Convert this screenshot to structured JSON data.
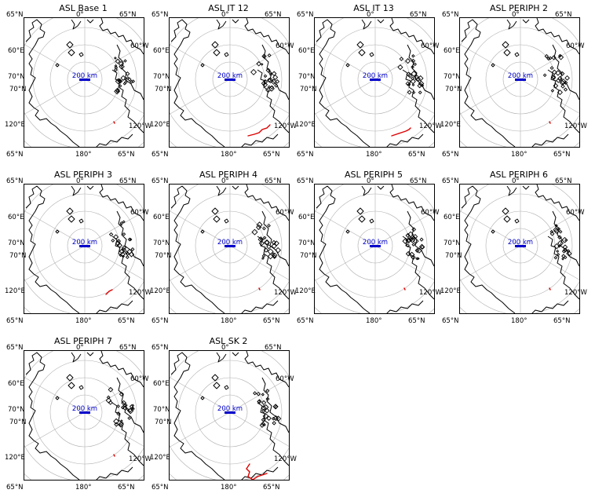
{
  "figure": {
    "panels": [
      {
        "title": "ASL Base 1",
        "highlight": "tiny"
      },
      {
        "title": "ASL IT 12",
        "highlight": "long"
      },
      {
        "title": "ASL IT 13",
        "highlight": "long2"
      },
      {
        "title": "ASL PERIPH 2",
        "highlight": "tiny"
      },
      {
        "title": "ASL PERIPH 3",
        "highlight": "short"
      },
      {
        "title": "ASL PERIPH 4",
        "highlight": "tiny"
      },
      {
        "title": "ASL PERIPH 5",
        "highlight": "tiny"
      },
      {
        "title": "ASL PERIPH 6",
        "highlight": "tiny"
      },
      {
        "title": "ASL PERIPH 7",
        "highlight": "tiny"
      },
      {
        "title": "ASL SK 2",
        "highlight": "sk"
      }
    ],
    "graticule_labels": {
      "top_left": "65°N",
      "top_center": "0°",
      "top_right": "65°N",
      "bottom_left": "65°N",
      "bottom_center": "180°",
      "bottom_right": "65°N",
      "left_upper": "60°E",
      "left_mid_a": "70°N",
      "left_mid_b": "70°N",
      "left_lower": "120°E",
      "right_upper": "60°W",
      "right_lower": "120°W"
    },
    "scale_bar_label": "200 km",
    "colors": {
      "coastline": "#000000",
      "graticule": "#b0b0b0",
      "scale_bar": "#0000cc",
      "track": "#dd0000"
    }
  }
}
